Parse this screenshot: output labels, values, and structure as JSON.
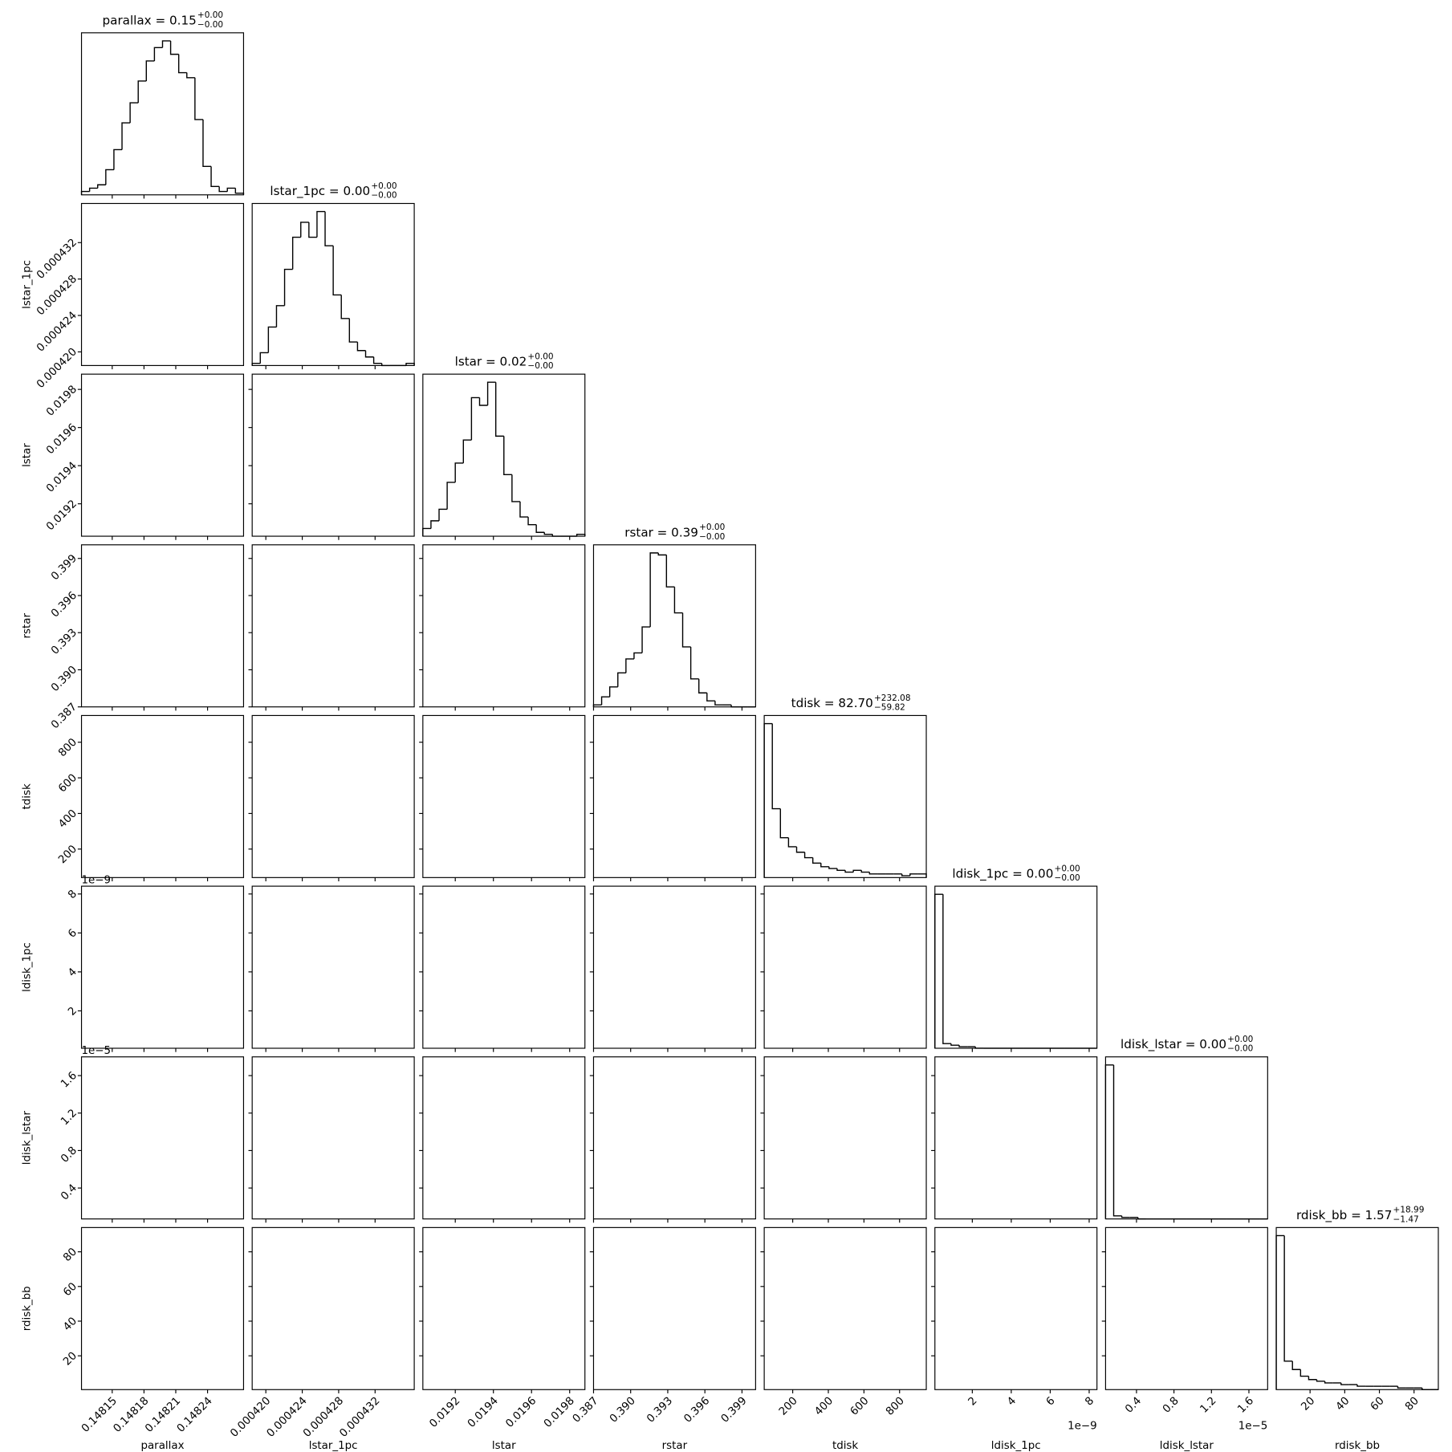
{
  "chart_data": {
    "type": "corner",
    "parameters": [
      {
        "name": "parallax",
        "title": "parallax = 0.15",
        "title_plus": "+0.00",
        "title_minus": "−0.00",
        "lim": [
          0.148121,
          0.148274
        ],
        "ticks": [
          0.14815,
          0.14818,
          0.14821,
          0.14824
        ],
        "counts": [
          2,
          4,
          6,
          15,
          27,
          43,
          55,
          68,
          80,
          88,
          92,
          84,
          73,
          70,
          45,
          17,
          5,
          2,
          4,
          1
        ]
      },
      {
        "name": "lstar_1pc",
        "title": "lstar_1pc = 0.00",
        "title_plus": "+0.00",
        "title_minus": "−0.00",
        "lim": [
          0.0004185,
          0.0004363
        ],
        "ticks": [
          {
            "value": 0.00042,
            "label": "0.000420"
          },
          0.000424,
          0.000428,
          0.000432
        ],
        "counts": [
          1,
          6,
          18,
          28,
          45,
          60,
          67,
          60,
          72,
          56,
          33,
          22,
          11,
          7,
          4,
          1,
          0,
          0,
          0,
          1
        ]
      },
      {
        "name": "lstar",
        "title": "lstar = 0.02",
        "title_plus": "+0.00",
        "title_minus": "−0.00",
        "lim": [
          0.01903,
          0.01988
        ],
        "ticks": [
          0.0192,
          0.0194,
          0.0196,
          0.0198
        ],
        "counts": [
          4,
          8,
          14,
          28,
          38,
          50,
          72,
          68,
          80,
          52,
          32,
          18,
          10,
          6,
          2,
          1,
          0,
          0,
          0,
          1
        ]
      },
      {
        "name": "rstar",
        "title": "rstar = 0.39",
        "title_plus": "+0.00",
        "title_minus": "−0.00",
        "lim": [
          0.387,
          0.4001
        ],
        "ticks": [
          0.387,
          {
            "value": 0.39,
            "label": "0.390"
          },
          0.393,
          0.396,
          0.399
        ],
        "counts": [
          1,
          5,
          10,
          17,
          24,
          27,
          40,
          77,
          76,
          60,
          47,
          30,
          14,
          7,
          3,
          1,
          1,
          0,
          0,
          0
        ]
      },
      {
        "name": "tdisk",
        "title": "tdisk = 82.70",
        "title_plus": "+232.08",
        "title_minus": "−59.82",
        "lim": [
          40,
          950
        ],
        "ticks": [
          200,
          400,
          600,
          800
        ],
        "counts": [
          85,
          38,
          22,
          17,
          14,
          11,
          8,
          6,
          5,
          4,
          3,
          4,
          3,
          2,
          2,
          2,
          2,
          1,
          2,
          2
        ]
      },
      {
        "name": "ldisk_1pc",
        "title": "ldisk_1pc = 0.00",
        "title_plus": "+0.00",
        "title_minus": "−0.00",
        "lim": [
          8e-11,
          8.4e-09
        ],
        "offset_label": "1e−9",
        "ticks": [
          {
            "value": 2e-09,
            "label": "2"
          },
          {
            "value": 4e-09,
            "label": "4"
          },
          {
            "value": 6e-09,
            "label": "6"
          },
          {
            "value": 8e-09,
            "label": "8"
          }
        ],
        "counts": [
          100,
          3,
          2,
          1,
          1,
          0,
          0,
          0,
          0,
          0,
          0,
          0,
          0,
          0,
          0,
          0,
          0,
          0,
          0,
          0
        ]
      },
      {
        "name": "ldisk_lstar",
        "title": "ldisk_lstar = 0.00",
        "title_plus": "+0.00",
        "title_minus": "−0.00",
        "lim": [
          7e-07,
          1.8e-05
        ],
        "offset_label": "1e−5",
        "ticks": [
          {
            "value": 4e-06,
            "label": "0.4"
          },
          {
            "value": 8e-06,
            "label": "0.8"
          },
          {
            "value": 1.2e-05,
            "label": "1.2"
          },
          {
            "value": 1.6e-05,
            "label": "1.6"
          }
        ],
        "counts": [
          100,
          2,
          1,
          1,
          0,
          0,
          0,
          0,
          0,
          0,
          0,
          0,
          0,
          0,
          0,
          0,
          0,
          0,
          0,
          0
        ]
      },
      {
        "name": "rdisk_bb",
        "title": "rdisk_bb = 1.57",
        "title_plus": "+18.99",
        "title_minus": "−1.47",
        "lim": [
          0.5,
          94
        ],
        "ticks": [
          20,
          40,
          60,
          80
        ],
        "counts": [
          92,
          17,
          12,
          8,
          6,
          5,
          4,
          4,
          3,
          3,
          2,
          2,
          2,
          2,
          2,
          1,
          1,
          1,
          0,
          0
        ]
      }
    ]
  }
}
